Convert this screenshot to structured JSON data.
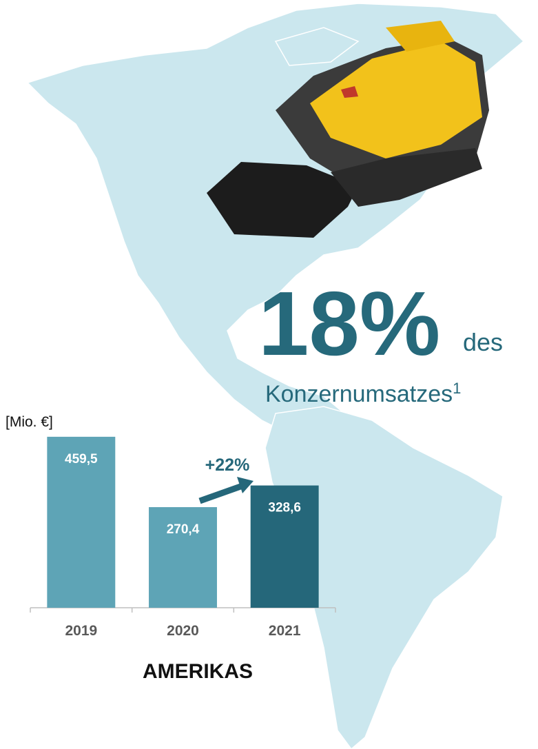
{
  "chart_data": {
    "type": "bar",
    "title": "AMERIKAS",
    "unit_label": "[Mio. €]",
    "categories": [
      "2019",
      "2020",
      "2021"
    ],
    "values": [
      459.5,
      270.4,
      328.6
    ],
    "value_labels": [
      "459,5",
      "270,4",
      "328,6"
    ],
    "colors": [
      "#5ea4b6",
      "#5ea4b6",
      "#25677a"
    ],
    "ylim": [
      0,
      500
    ],
    "annotation": "+22%"
  },
  "headline": {
    "value": "18%",
    "text": "des",
    "subtext": "Konzernumsatzes",
    "footnote": "1"
  }
}
